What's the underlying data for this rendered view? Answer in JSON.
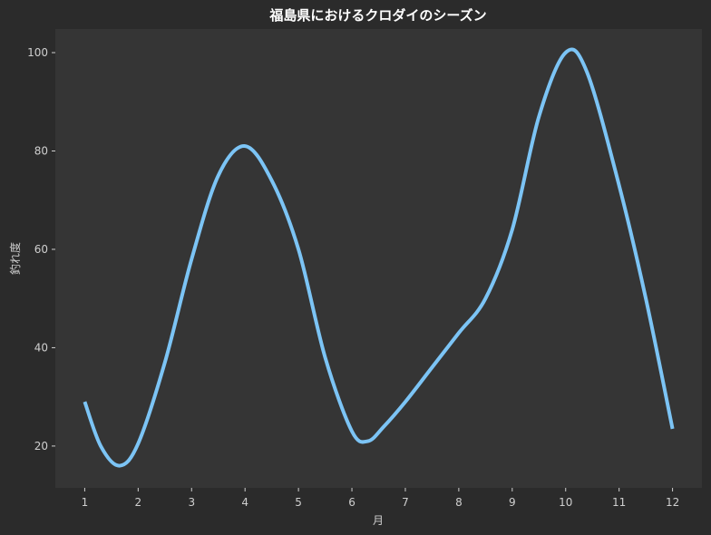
{
  "chart_data": {
    "type": "line",
    "title": "福島県におけるクロダイのシーズン",
    "xlabel": "月",
    "ylabel": "釣れ度",
    "x": [
      1,
      2,
      3,
      4,
      5,
      6,
      7,
      8,
      9,
      10,
      11,
      12
    ],
    "x_tick_labels": [
      "1",
      "2",
      "3",
      "4",
      "5",
      "6",
      "7",
      "8",
      "9",
      "10",
      "11",
      "12"
    ],
    "xlim": [
      0.45,
      12.55
    ],
    "ylim": [
      11.5,
      104.8
    ],
    "y_ticks": [
      20,
      40,
      60,
      80,
      100
    ],
    "grid": false,
    "series": [
      {
        "color": "#7cc4f5",
        "smooth": true,
        "points": [
          [
            1.0,
            29
          ],
          [
            1.3,
            20
          ],
          [
            1.65,
            16
          ],
          [
            2.0,
            20.5
          ],
          [
            2.5,
            37
          ],
          [
            3.0,
            58
          ],
          [
            3.5,
            75
          ],
          [
            4.0,
            81
          ],
          [
            4.5,
            74
          ],
          [
            5.0,
            60
          ],
          [
            5.5,
            38
          ],
          [
            6.0,
            23
          ],
          [
            6.3,
            21
          ],
          [
            6.6,
            24
          ],
          [
            7.0,
            29
          ],
          [
            7.5,
            36
          ],
          [
            8.0,
            43
          ],
          [
            8.5,
            50
          ],
          [
            9.0,
            64
          ],
          [
            9.5,
            87
          ],
          [
            10.0,
            100
          ],
          [
            10.4,
            96
          ],
          [
            11.0,
            73
          ],
          [
            11.5,
            50
          ],
          [
            12.0,
            23.5
          ]
        ]
      }
    ]
  }
}
